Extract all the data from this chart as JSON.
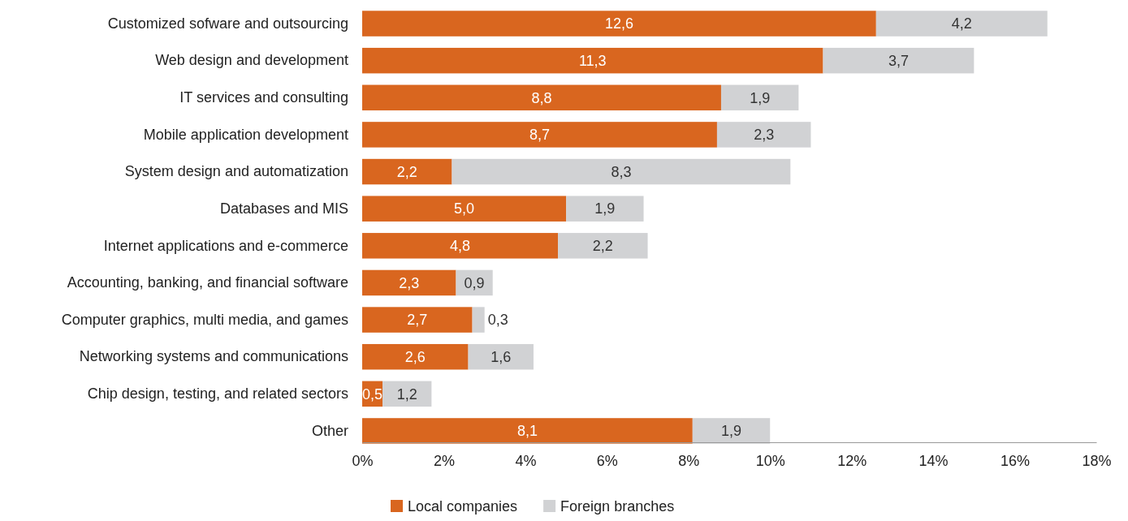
{
  "chart_data": {
    "type": "bar",
    "orientation": "horizontal",
    "stacked": true,
    "categories": [
      "Customized sofware and outsourcing",
      "Web design and development",
      "IT services and consulting",
      "Mobile application development",
      "System design and automatization",
      "Databases and MIS",
      "Internet applications and e-commerce",
      "Accounting, banking, and financial software",
      "Computer graphics, multi media, and games",
      "Networking systems and communications",
      "Chip design, testing, and related sectors",
      "Other"
    ],
    "series": [
      {
        "name": "Local companies",
        "color": "#d9661f",
        "values": [
          12.6,
          11.3,
          8.8,
          8.7,
          2.2,
          5.0,
          4.8,
          2.3,
          2.7,
          2.6,
          0.5,
          8.1
        ],
        "value_labels": [
          "12,6",
          "11,3",
          "8,8",
          "8,7",
          "2,2",
          "5,0",
          "4,8",
          "2,3",
          "2,7",
          "2,6",
          "0,5",
          "8,1"
        ]
      },
      {
        "name": "Foreign branches",
        "color": "#d1d2d4",
        "values": [
          4.2,
          3.7,
          1.9,
          2.3,
          8.3,
          1.9,
          2.2,
          0.9,
          0.3,
          1.6,
          1.2,
          1.9
        ],
        "value_labels": [
          "4,2",
          "3,7",
          "1,9",
          "2,3",
          "8,3",
          "1,9",
          "2,2",
          "0,9",
          "0,3",
          "1,6",
          "1,2",
          "1,9"
        ]
      }
    ],
    "xlim": [
      0,
      18
    ],
    "xticks": [
      {
        "value": 0,
        "label": "0%"
      },
      {
        "value": 2,
        "label": "2%"
      },
      {
        "value": 4,
        "label": "4%"
      },
      {
        "value": 6,
        "label": "6%"
      },
      {
        "value": 8,
        "label": "8%"
      },
      {
        "value": 10,
        "label": "10%"
      },
      {
        "value": 12,
        "label": "12%"
      },
      {
        "value": 14,
        "label": "14%"
      },
      {
        "value": 16,
        "label": "16%"
      },
      {
        "value": 18,
        "label": "18%"
      }
    ],
    "grid": false,
    "legend": "bottom"
  }
}
